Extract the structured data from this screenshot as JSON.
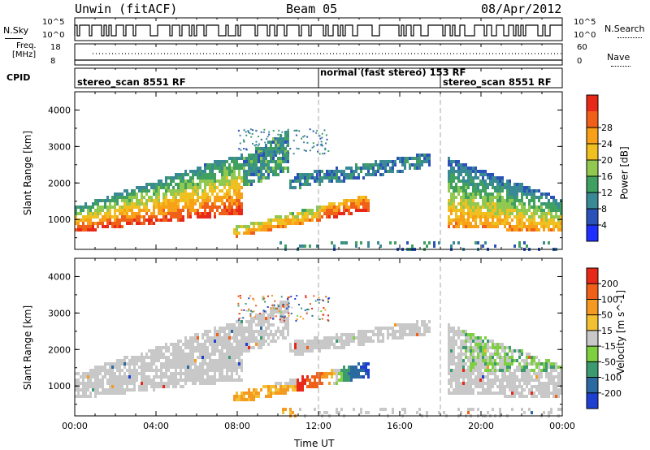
{
  "header": {
    "station": "Unwin (fitACF)",
    "beam": "Beam 05",
    "date": "08/Apr/2012"
  },
  "top_panels": {
    "nsky_label": "N.Sky",
    "nsearch_label": "N.Search",
    "nsky_ticks": [
      "10^5",
      "10^0"
    ],
    "nsky_ticks_right": [
      "10^5",
      "10^0"
    ],
    "freq_label": "Freq.",
    "freq_unit": "[MHz]",
    "freq_ticks": [
      "18",
      "8"
    ],
    "nave_label": "Nave",
    "nave_ticks": [
      "60",
      "0"
    ],
    "cpid_label": "CPID"
  },
  "modes": [
    {
      "name": "stereo_scan 8551 RF",
      "start_hour": 0
    },
    {
      "name": "normal (fast stereo) 153 RF",
      "start_hour": 12
    },
    {
      "name": "stereo_scan 8551 RF",
      "start_hour": 18
    }
  ],
  "chart_data": [
    {
      "type": "heatmap",
      "name": "Power",
      "xlabel": "Time UT",
      "ylabel": "Slant Range [km]",
      "xlim": [
        0,
        24
      ],
      "ylim": [
        180,
        4500
      ],
      "x_ticks": [
        "00:00",
        "04:00",
        "08:00",
        "12:00",
        "16:00",
        "20:00",
        "00:00"
      ],
      "y_ticks": [
        "1000",
        "2000",
        "3000",
        "4000"
      ],
      "colorbar": {
        "label": "Power [dB]",
        "ticks": [
          "4",
          "8",
          "12",
          "16",
          "20",
          "24",
          "28"
        ],
        "range": [
          0,
          30
        ],
        "colors": [
          "#1f2fff",
          "#2a52b8",
          "#3a8a96",
          "#3fa060",
          "#90c850",
          "#f0c020",
          "#f8a018",
          "#f06018",
          "#e82818"
        ]
      },
      "echo_bands": [
        {
          "t0": 0.0,
          "t1": 8.2,
          "r0": 700,
          "r1": 2600,
          "peak": 27
        },
        {
          "t0": 7.8,
          "t1": 14.5,
          "r0": 500,
          "r1": 1600,
          "peak": 25
        },
        {
          "t0": 9.5,
          "t1": 17.5,
          "r0": 1600,
          "r1": 3000,
          "peak": 9
        },
        {
          "t0": 18.3,
          "t1": 24.0,
          "r0": 700,
          "r1": 2600,
          "peak": 22
        }
      ]
    },
    {
      "type": "heatmap",
      "name": "Velocity",
      "xlabel": "Time UT",
      "ylabel": "Slant Range [km]",
      "xlim": [
        0,
        24
      ],
      "ylim": [
        180,
        4500
      ],
      "x_ticks": [
        "00:00",
        "04:00",
        "08:00",
        "12:00",
        "16:00",
        "20:00",
        "00:00"
      ],
      "y_ticks": [
        "1000",
        "2000",
        "3000",
        "4000"
      ],
      "colorbar": {
        "label": "Velocity [m s^-1]",
        "ticks": [
          "200",
          "100",
          "50",
          "15",
          "-15",
          "-50",
          "-100",
          "-200"
        ],
        "colors": [
          "#1f3fd0",
          "#2a6aa0",
          "#3c9a70",
          "#7ed040",
          "#c8c8c8",
          "#f2c030",
          "#f59a20",
          "#f06018",
          "#e82818"
        ]
      },
      "notes": "ground scatter grey; 11-15 UT band at 1000-1600 km red to blue"
    }
  ]
}
